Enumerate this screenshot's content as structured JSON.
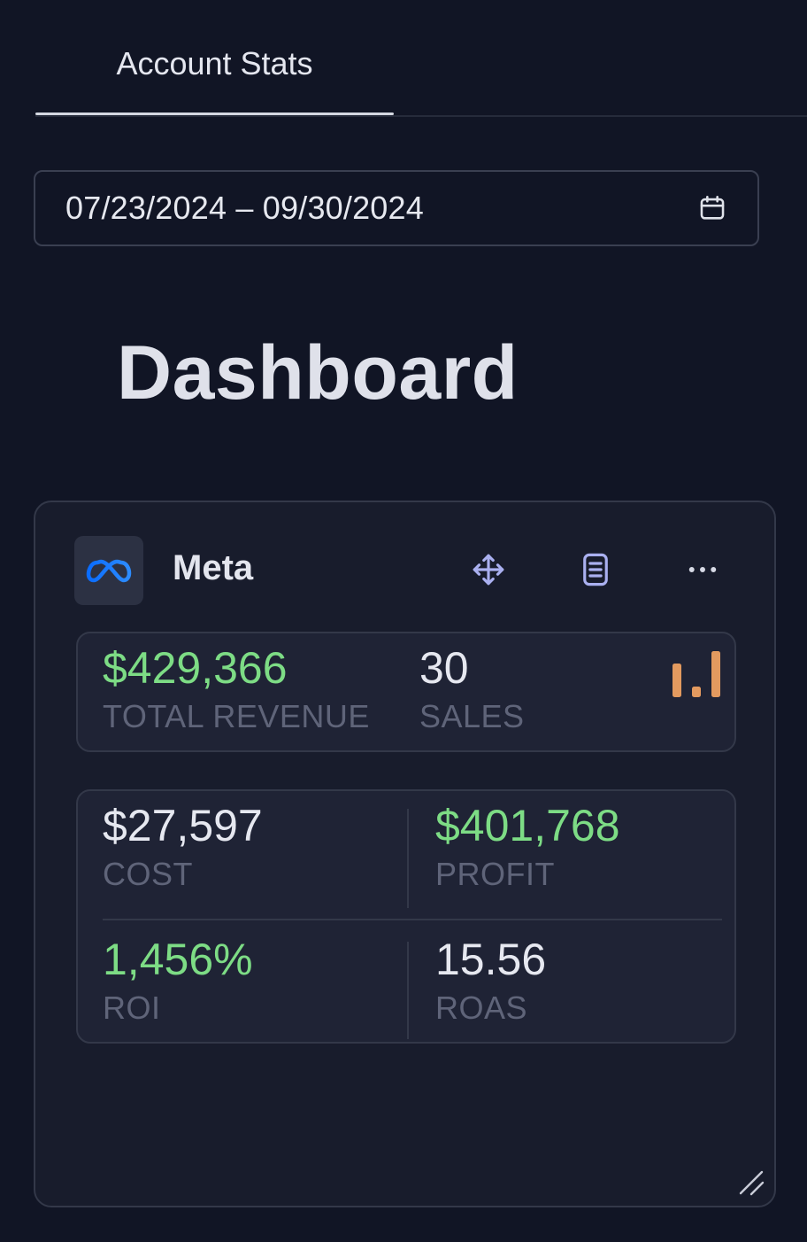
{
  "tabs": [
    {
      "label": "Account Stats",
      "active": true
    }
  ],
  "date_range": {
    "value": "07/23/2024 – 09/30/2024",
    "icon": "calendar-icon"
  },
  "page_title": "Dashboard",
  "card": {
    "name": "Meta",
    "logo_icon": "meta-logo-icon",
    "actions": [
      "move-icon",
      "notes-icon",
      "more-icon"
    ],
    "summary": {
      "total_revenue": {
        "value": "$429,366",
        "label": "TOTAL REVENUE"
      },
      "sales": {
        "value": "30",
        "label": "SALES"
      },
      "chart_icon": "bar-chart-icon"
    },
    "metrics": {
      "cost": {
        "value": "$27,597",
        "label": "COST"
      },
      "profit": {
        "value": "$401,768",
        "label": "PROFIT"
      },
      "roi": {
        "value": "1,456%",
        "label": "ROI"
      },
      "roas": {
        "value": "15.56",
        "label": "ROAS"
      }
    }
  },
  "colors": {
    "background": "#111525",
    "card": "#181c2c",
    "positive": "#7ddc85",
    "accent_bars": "#e39a5f",
    "meta_blue": "#1877f2"
  }
}
